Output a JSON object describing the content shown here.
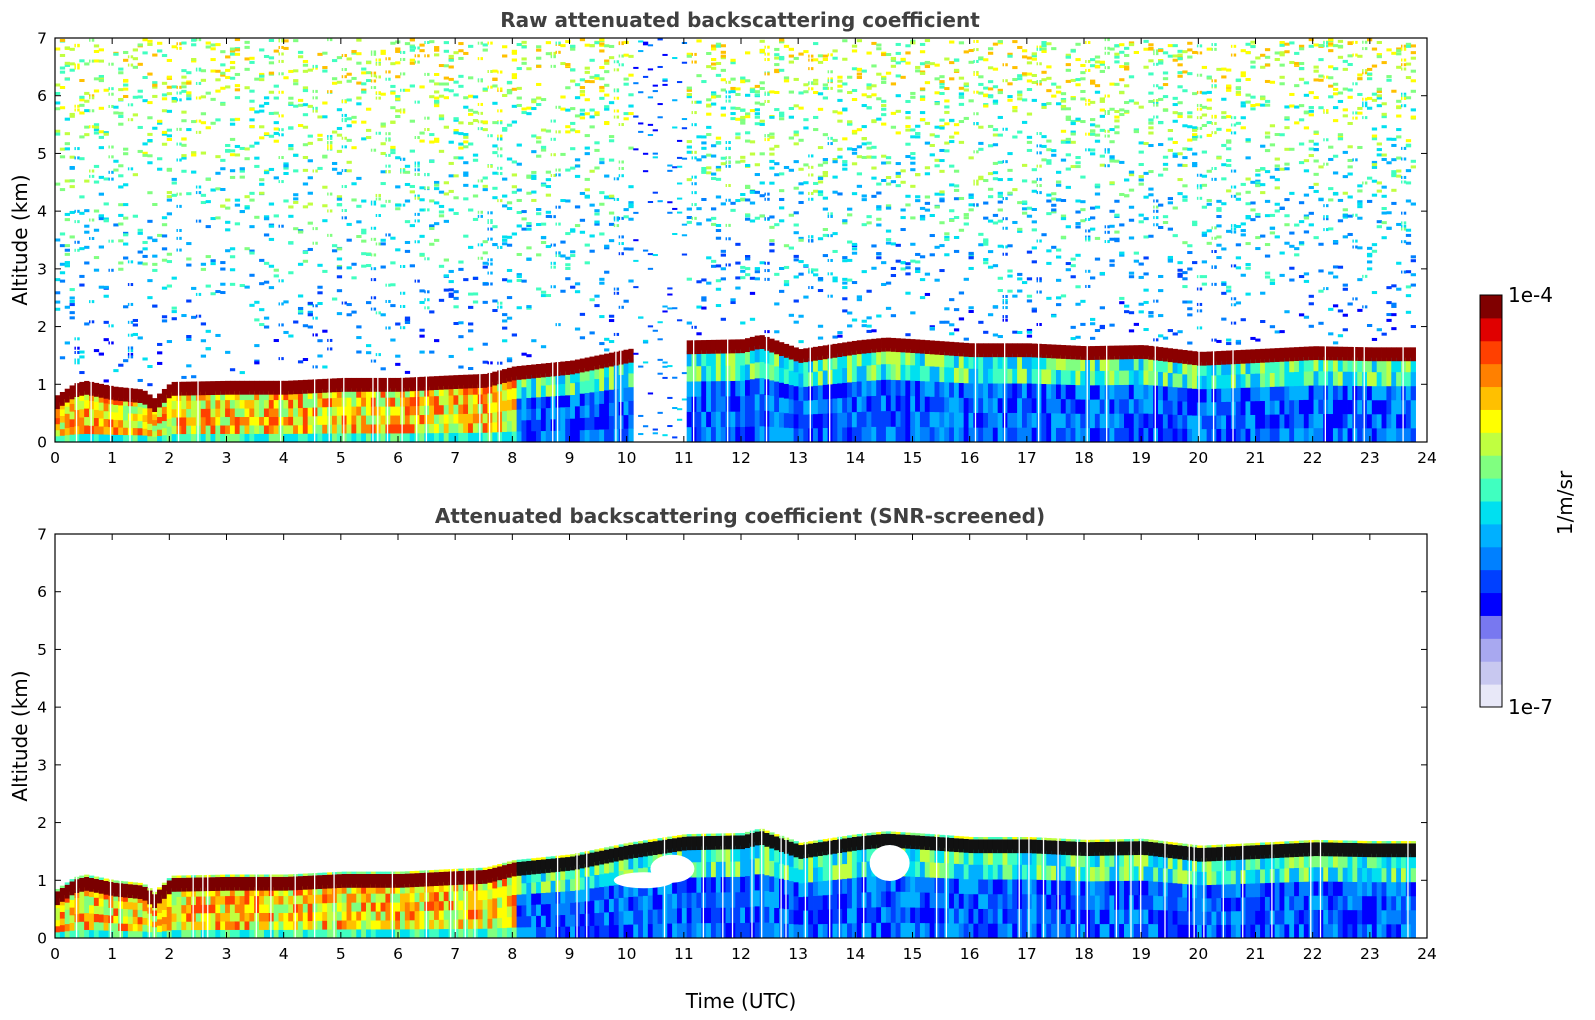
{
  "chart_data": [
    {
      "type": "heatmap",
      "title": "Raw attenuated backscattering coefficient",
      "xlabel": "",
      "ylabel": "Altitude (km)",
      "xlim": [
        0,
        24
      ],
      "ylim": [
        0,
        7
      ],
      "xticks": [
        0,
        1,
        2,
        3,
        4,
        5,
        6,
        7,
        8,
        9,
        10,
        11,
        12,
        13,
        14,
        15,
        16,
        17,
        18,
        19,
        20,
        21,
        22,
        23,
        24
      ],
      "yticks": [
        0,
        1,
        2,
        3,
        4,
        5,
        6,
        7
      ],
      "screened": false,
      "layer_top_km": {
        "time_utc": [
          0,
          0.3,
          0.5,
          1.0,
          1.5,
          1.7,
          2.0,
          3.0,
          4.0,
          5.0,
          6.0,
          7.0,
          7.5,
          8.0,
          9.0,
          10.0,
          11.0,
          12.0,
          12.3,
          13.0,
          14.0,
          14.5,
          15.0,
          16.0,
          17.0,
          18.0,
          19.0,
          20.0,
          21.0,
          22.0,
          23.0,
          23.8
        ],
        "altitude_km": [
          0.75,
          0.95,
          1.0,
          0.9,
          0.85,
          0.7,
          0.98,
          1.0,
          1.0,
          1.05,
          1.05,
          1.1,
          1.12,
          1.25,
          1.35,
          1.55,
          1.7,
          1.72,
          1.8,
          1.55,
          1.7,
          1.75,
          1.72,
          1.65,
          1.65,
          1.6,
          1.62,
          1.5,
          1.55,
          1.6,
          1.58,
          1.58
        ]
      },
      "data_gap_utc": [
        10.1,
        11.0
      ]
    },
    {
      "type": "heatmap",
      "title": "Attenuated backscattering coefficient (SNR-screened)",
      "xlabel": "Time (UTC)",
      "ylabel": "Altitude (km)",
      "xlim": [
        0,
        24
      ],
      "ylim": [
        0,
        7
      ],
      "xticks": [
        0,
        1,
        2,
        3,
        4,
        5,
        6,
        7,
        8,
        9,
        10,
        11,
        12,
        13,
        14,
        15,
        16,
        17,
        18,
        19,
        20,
        21,
        22,
        23,
        24
      ],
      "yticks": [
        0,
        1,
        2,
        3,
        4,
        5,
        6,
        7
      ],
      "screened": true,
      "layer_top_km": {
        "time_utc": [
          0,
          0.3,
          0.5,
          1.0,
          1.5,
          1.7,
          2.0,
          3.0,
          4.0,
          5.0,
          6.0,
          7.0,
          7.5,
          8.0,
          9.0,
          10.0,
          11.0,
          12.0,
          12.3,
          13.0,
          14.0,
          14.5,
          15.0,
          16.0,
          17.0,
          18.0,
          19.0,
          20.0,
          21.0,
          22.0,
          23.0,
          23.8
        ],
        "altitude_km": [
          0.75,
          0.95,
          1.0,
          0.9,
          0.85,
          0.7,
          0.98,
          1.0,
          1.0,
          1.05,
          1.05,
          1.1,
          1.12,
          1.25,
          1.35,
          1.55,
          1.7,
          1.72,
          1.8,
          1.55,
          1.7,
          1.75,
          1.72,
          1.65,
          1.65,
          1.6,
          1.62,
          1.5,
          1.55,
          1.6,
          1.58,
          1.58
        ]
      }
    }
  ],
  "colorbar": {
    "label": "1/m/sr",
    "max_label": "1e-4",
    "min_label": "1e-7",
    "colors": [
      "#e8e8f8",
      "#c8c8f0",
      "#a8a8f0",
      "#7878f0",
      "#0000ff",
      "#0040ff",
      "#0080ff",
      "#00b0ff",
      "#00e0f0",
      "#40ffc0",
      "#80ff80",
      "#c0ff40",
      "#ffff00",
      "#ffc000",
      "#ff8000",
      "#ff4000",
      "#e00000",
      "#800000"
    ]
  }
}
